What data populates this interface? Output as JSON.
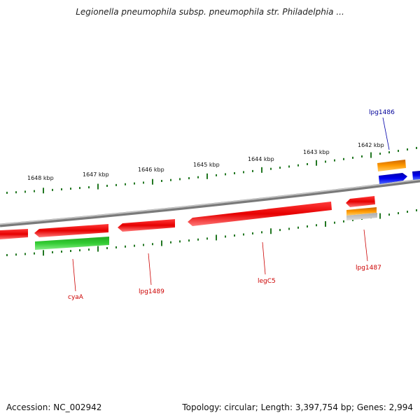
{
  "title": "Legionella pneumophila subsp. pneumophila str. Philadelphia ...",
  "footer": {
    "accession": "Accession: NC_002942",
    "summary": "Topology: circular; Length: 3,397,754 bp; Genes: 2,994"
  },
  "scale_labels": [
    "1648 kbp",
    "1647 kbp",
    "1646 kbp",
    "1645 kbp",
    "1644 kbp",
    "1643 kbp",
    "1642 kbp"
  ],
  "gene_labels": {
    "lpg1486": "lpg1486",
    "lpg1487": "lpg1487",
    "legC5": "legC5",
    "lpg1489": "lpg1489",
    "cyaA": "cyaA"
  },
  "colors": {
    "cds_red": "#ee0000",
    "cds_green": "#33bb33",
    "cds_orange": "#ee8800",
    "cds_blue": "#0000ee",
    "tick_green": "#227722",
    "backbone": "#888888",
    "label_red": "#cc0000",
    "label_blue": "#000099"
  }
}
